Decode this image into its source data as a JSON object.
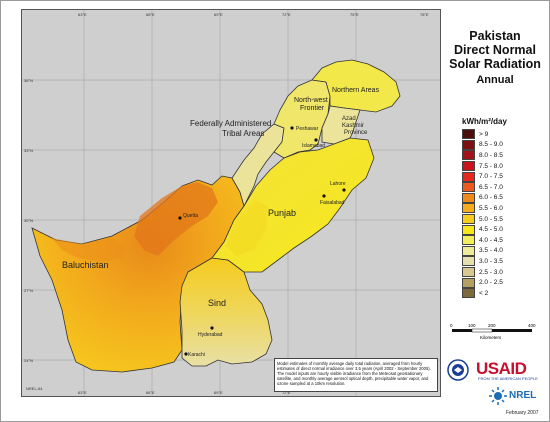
{
  "title": {
    "line1": "Pakistan",
    "line2": "Direct Normal",
    "line3": "Solar Radiation",
    "subtitle": "Annual"
  },
  "legend": {
    "unit": "kWh/m²/day",
    "items": [
      {
        "label": "> 9",
        "color": "#4a0f0a"
      },
      {
        "label": "8.5 - 9.0",
        "color": "#7b1111"
      },
      {
        "label": "8.0 - 8.5",
        "color": "#a3131a"
      },
      {
        "label": "7.5 - 8.0",
        "color": "#c9141c"
      },
      {
        "label": "7.0 - 7.5",
        "color": "#e8281e"
      },
      {
        "label": "6.5 - 7.0",
        "color": "#ec5a1d"
      },
      {
        "label": "6.0 - 6.5",
        "color": "#f08a1b"
      },
      {
        "label": "5.5 - 6.0",
        "color": "#f5ad1c"
      },
      {
        "label": "5.0 - 5.5",
        "color": "#f7cd1e"
      },
      {
        "label": "4.5 - 5.0",
        "color": "#f6e71c"
      },
      {
        "label": "4.0 - 4.5",
        "color": "#f2ef5a"
      },
      {
        "label": "3.5 - 4.0",
        "color": "#eeeb9a"
      },
      {
        "label": "3.0 - 3.5",
        "color": "#e6dfaf"
      },
      {
        "label": "2.5 - 3.0",
        "color": "#d8c992"
      },
      {
        "label": "2.0 - 2.5",
        "color": "#b5a064"
      },
      {
        "label": "< 2",
        "color": "#7c6a3e"
      }
    ]
  },
  "scalebar": {
    "ticks": [
      "0",
      "100",
      "200",
      "400"
    ],
    "unit": "Kilometers"
  },
  "regions": {
    "northern_areas": "Northern Areas",
    "nwfp_1": "North-west",
    "nwfp_2": "Frontier",
    "fata_1": "Federally Administered",
    "fata_2": "Tribal Areas",
    "ajk_1": "Azad",
    "ajk_2": "Kashmir",
    "ajk_3": "Province",
    "punjab": "Punjab",
    "balochistan": "Baluchistan",
    "sind": "Sind"
  },
  "cities": {
    "peshawar": "Peshawar",
    "islamabad": "Islamabad",
    "lahore": "Lahore",
    "faisalabad": "Faisalabad",
    "quetta": "Quetta",
    "hyderabad": "Hyderabad",
    "karachi": "Karachi"
  },
  "axes": {
    "lon_labels": [
      "63°E",
      "66°E",
      "69°E",
      "72°E",
      "75°E",
      "78°E"
    ],
    "lat_labels": [
      "36°N",
      "33°N",
      "30°N",
      "27°N",
      "24°N"
    ]
  },
  "note": "Model estimates of monthly average daily total radiation, averaged from hourly estimates of direct normal irradiance over 3.5 years (April 2002 - September 2005). The model inputs are hourly visible irradiance from the Meteosat geostationary satellite, and monthly average aerosol optical depth, precipitable water vapor, and ozone sampled at a 10km resolution.",
  "logos": {
    "usaid": "USAID",
    "usaid_tagline": "FROM THE AMERICAN PEOPLE",
    "nrel": "NREL"
  },
  "date": "February 2007",
  "credit": "NREL-64"
}
